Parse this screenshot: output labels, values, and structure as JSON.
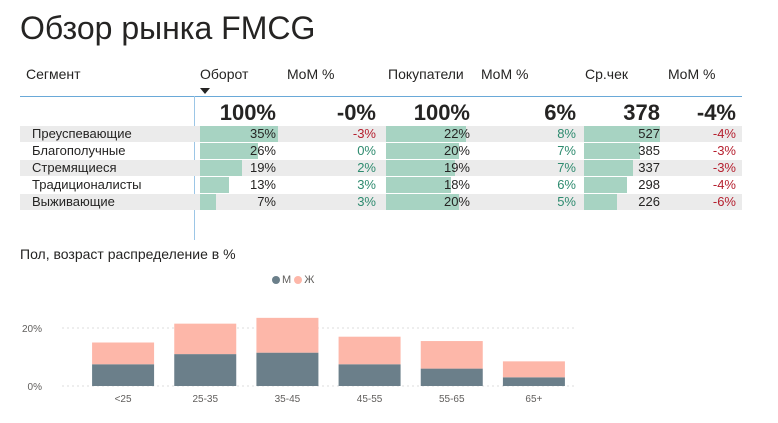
{
  "title": "Обзор рынка FMCG",
  "table": {
    "headers": {
      "segment": "Сегмент",
      "turnover": "Оборот",
      "turnover_mom": "MoM %",
      "buyers": "Покупатели",
      "buyers_mom": "MoM %",
      "avg_check": "Ср.чек",
      "avg_check_mom": "MoM %"
    },
    "totals": {
      "turnover": "100%",
      "turnover_mom": "-0%",
      "buyers": "100%",
      "buyers_mom": "6%",
      "avg_check": "378",
      "avg_check_mom": "-4%"
    },
    "rows": [
      {
        "segment": "Преуспевающие",
        "turnover": "35%",
        "turnover_mom": "-3%",
        "buyers": "22%",
        "buyers_mom": "8%",
        "avg_check": "527",
        "avg_check_mom": "-4%"
      },
      {
        "segment": "Благополучные",
        "turnover": "26%",
        "turnover_mom": "0%",
        "buyers": "20%",
        "buyers_mom": "7%",
        "avg_check": "385",
        "avg_check_mom": "-3%"
      },
      {
        "segment": "Стремящиеся",
        "turnover": "19%",
        "turnover_mom": "2%",
        "buyers": "19%",
        "buyers_mom": "7%",
        "avg_check": "337",
        "avg_check_mom": "-3%"
      },
      {
        "segment": "Традиционалисты",
        "turnover": "13%",
        "turnover_mom": "3%",
        "buyers": "18%",
        "buyers_mom": "6%",
        "avg_check": "298",
        "avg_check_mom": "-4%"
      },
      {
        "segment": "Выживающие",
        "turnover": "7%",
        "turnover_mom": "3%",
        "buyers": "20%",
        "buyers_mom": "5%",
        "avg_check": "226",
        "avg_check_mom": "-6%"
      }
    ],
    "colors": {
      "bar": "#a7d3c2",
      "positive": "#2e8b6f",
      "negative": "#b51f2e",
      "alt_row": "#ebebeb"
    }
  },
  "chart_title": "Пол, возраст распределение в %",
  "chart_data": {
    "type": "bar",
    "stacked": true,
    "categories": [
      "<25",
      "25-35",
      "35-45",
      "45-55",
      "55-65",
      "65+"
    ],
    "series": [
      {
        "name": "М",
        "color": "#6b7f8a",
        "values": [
          7.5,
          11,
          11.5,
          7.5,
          6,
          3
        ]
      },
      {
        "name": "Ж",
        "color": "#fdb7a9",
        "values": [
          7.5,
          10.5,
          12,
          9.5,
          9.5,
          5.5
        ]
      }
    ],
    "ylim": [
      0,
      25
    ],
    "yticks": [
      "0%",
      "20%"
    ],
    "ytick_values": [
      0,
      20
    ],
    "legend": "top-center",
    "grid": true
  }
}
